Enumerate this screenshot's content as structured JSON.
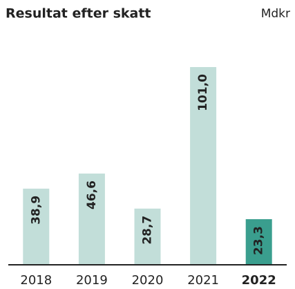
{
  "chart_data": {
    "type": "bar",
    "title": "Resultat efter skatt",
    "unit": "Mdkr",
    "categories": [
      "2018",
      "2019",
      "2020",
      "2021",
      "2022"
    ],
    "values": [
      38.9,
      46.6,
      28.7,
      101.0,
      23.3
    ],
    "value_labels": [
      "38,9",
      "46,6",
      "28,7",
      "101,0",
      "23,3"
    ],
    "colors": [
      "#c2ded9",
      "#c2ded9",
      "#c2ded9",
      "#c2ded9",
      "#3a9e8e"
    ]
  }
}
